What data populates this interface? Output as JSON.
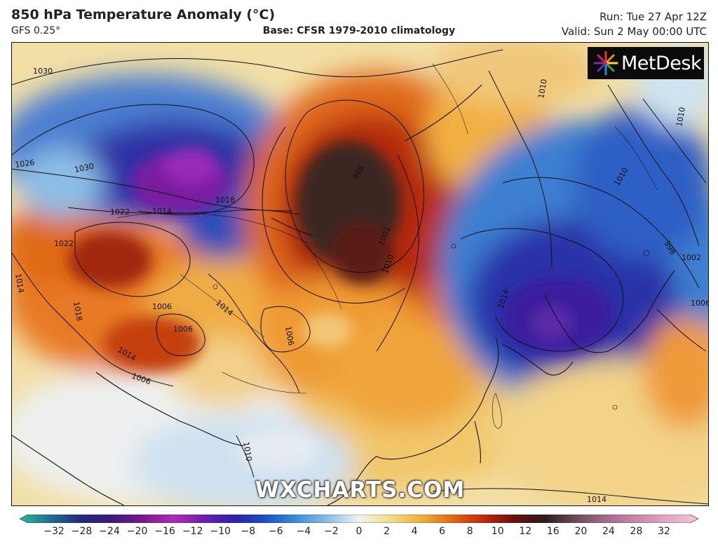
{
  "header": {
    "title": "850 hPa Temperature Anomaly (°C)",
    "model": "GFS 0.25°",
    "base": "Base: CFSR 1979-2010 climatology",
    "run": "Run: Tue 27 Apr 12Z",
    "valid": "Valid: Sun 2 May 00:00 UTC"
  },
  "logo": {
    "text": "MetDesk"
  },
  "watermark": "WXCHARTS.COM",
  "isobar_labels": [
    "1030",
    "1030",
    "1026",
    "1022",
    "1014",
    "1018",
    "998",
    "1002",
    "1010",
    "1014",
    "1006",
    "1006",
    "1006",
    "1014",
    "1006",
    "1010",
    "1022",
    "1018",
    "1014",
    "1010",
    "1010",
    "1010",
    "1002",
    "1006",
    "998",
    "1014",
    "1014"
  ],
  "colorbar": {
    "ticks": [
      "−32",
      "−28",
      "−24",
      "−20",
      "−16",
      "−12",
      "−10",
      "−8",
      "−6",
      "−4",
      "−2",
      "0",
      "2",
      "4",
      "6",
      "8",
      "10",
      "12",
      "16",
      "20",
      "24",
      "28",
      "32"
    ],
    "colors": [
      "#2bb89a",
      "#1f6f8f",
      "#232a7a",
      "#3b1a7c",
      "#7a1a8c",
      "#b12ab6",
      "#6a1fb0",
      "#2a22a8",
      "#1b52c4",
      "#3f8fd8",
      "#8cc0e8",
      "#f2f2f0",
      "#f4dc8a",
      "#f0b13c",
      "#e06b18",
      "#c22a0c",
      "#6d0f0f",
      "#2e1a1a",
      "#6a4a5a",
      "#a26c8c",
      "#c987a9",
      "#e3a7c5",
      "#f3c7dc"
    ]
  },
  "colors": {
    "warm_core": "#3a2524",
    "deep_cold": "#3b1f9c",
    "cold": "#1f5ac8",
    "warm": "#e36a18"
  }
}
